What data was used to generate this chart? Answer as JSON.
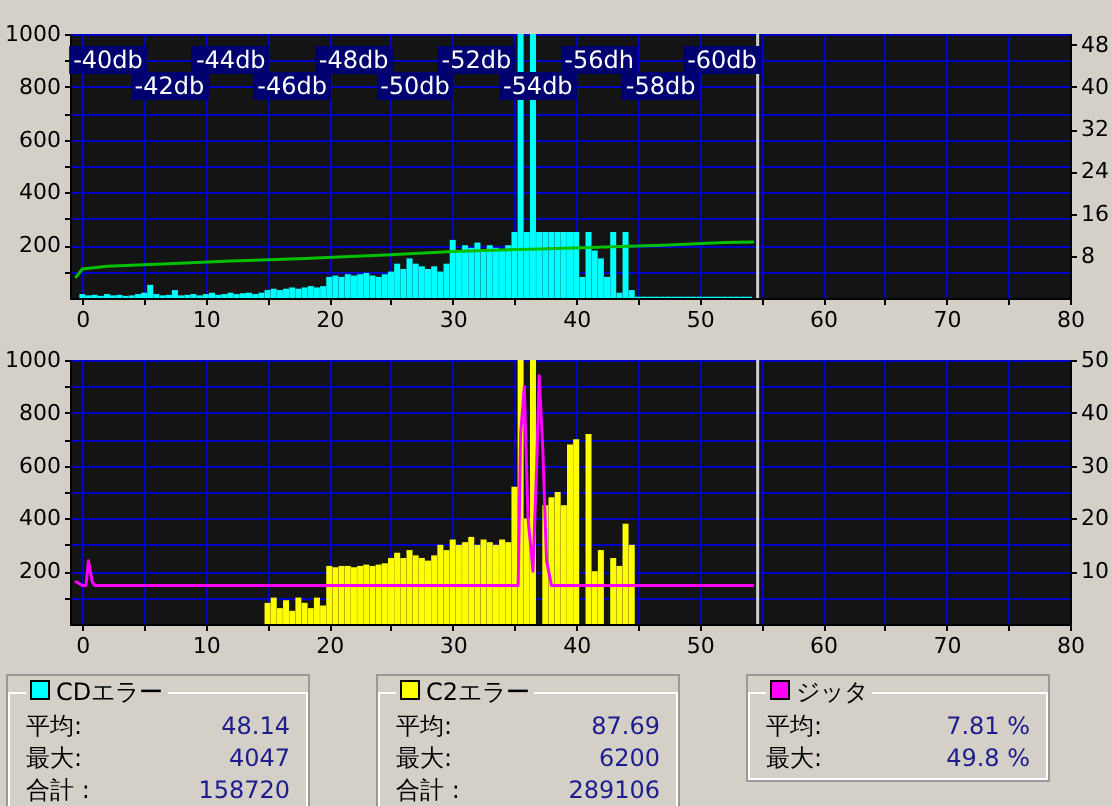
{
  "chart_data": [
    {
      "type": "bar",
      "x": [
        0,
        0.5,
        1,
        1.5,
        2,
        2.5,
        3,
        3.5,
        4,
        4.5,
        5,
        5.5,
        6,
        6.5,
        7,
        7.5,
        8,
        8.5,
        9,
        9.5,
        10,
        10.5,
        11,
        11.5,
        12,
        12.5,
        13,
        13.5,
        14,
        14.5,
        15,
        15.5,
        16,
        16.5,
        17,
        17.5,
        18,
        18.5,
        19,
        19.5,
        20,
        20.5,
        21,
        21.5,
        22,
        22.5,
        23,
        23.5,
        24,
        24.5,
        25,
        25.5,
        26,
        26.5,
        27,
        27.5,
        28,
        28.5,
        29,
        29.5,
        30,
        30.5,
        31,
        31.5,
        32,
        32.5,
        33,
        33.5,
        34,
        34.5,
        35,
        35.5,
        36,
        36.5,
        37,
        37.5,
        38,
        38.5,
        39,
        39.5,
        40,
        40.5,
        41,
        41.5,
        42,
        42.5,
        43,
        43.5,
        44,
        44.5,
        45,
        45.5,
        46,
        46.5,
        47,
        47.5,
        48,
        48.5,
        49,
        49.5,
        50,
        50.5,
        51,
        51.5,
        52,
        52.5,
        53,
        53.5,
        54
      ],
      "xlim": [
        -1,
        80
      ],
      "xticks": [
        0,
        {
          "value": 5,
          "label": null
        },
        10,
        {
          "value": 15,
          "label": null
        },
        20,
        {
          "value": 25,
          "label": null
        },
        30,
        {
          "value": 35,
          "label": null
        },
        40,
        {
          "value": 45,
          "label": null
        },
        50,
        {
          "value": 55,
          "label": null
        },
        60,
        {
          "value": 65,
          "label": null
        },
        70,
        {
          "value": 75,
          "label": null
        },
        80
      ],
      "ylim": [
        0,
        1000
      ],
      "yticks": [
        {
          "value": 100,
          "label": null
        },
        200,
        {
          "value": 300,
          "label": null
        },
        400,
        {
          "value": 500,
          "label": null
        },
        600,
        {
          "value": 700,
          "label": null
        },
        800,
        {
          "value": 900,
          "label": null
        },
        1000
      ],
      "y2lim": [
        0,
        50
      ],
      "y2ticks": [
        8,
        16,
        24,
        32,
        40,
        48
      ],
      "grid": true,
      "series": [
        {
          "color": "#00ffff",
          "values": [
            15,
            10,
            12,
            8,
            15,
            10,
            12,
            8,
            10,
            15,
            20,
            50,
            15,
            10,
            12,
            30,
            10,
            12,
            15,
            10,
            15,
            20,
            12,
            15,
            20,
            15,
            18,
            20,
            15,
            20,
            30,
            35,
            30,
            35,
            40,
            35,
            40,
            45,
            40,
            45,
            80,
            85,
            80,
            90,
            85,
            90,
            95,
            85,
            80,
            90,
            100,
            130,
            110,
            150,
            130,
            120,
            110,
            120,
            100,
            130,
            220,
            180,
            200,
            190,
            210,
            180,
            200,
            190,
            180,
            200,
            250,
            1000,
            250,
            1000,
            250,
            250,
            250,
            250,
            250,
            250,
            250,
            80,
            250,
            180,
            150,
            80,
            250,
            20,
            250,
            30,
            5,
            5,
            5,
            5,
            5,
            5,
            5,
            5,
            5,
            5,
            5,
            5,
            5,
            5,
            5,
            5,
            5,
            5,
            5
          ]
        },
        {
          "type": "line",
          "axis": "y2",
          "color": "#00c000",
          "x": [
            -0.5,
            0,
            2,
            7,
            12,
            18,
            25,
            30,
            37,
            47,
            52,
            54.3
          ],
          "values": [
            4,
            5.5,
            6,
            6.5,
            7,
            7.5,
            8.2,
            8.8,
            9.3,
            10,
            10.5,
            10.6
          ]
        }
      ],
      "ref_lines": [
        {
          "axis": "x",
          "value": 54.7,
          "color": "#d0d0d0"
        }
      ],
      "annotations": [
        "-40db",
        "-42db",
        "-44db",
        "-46db",
        "-48db",
        "-50db",
        "-52db",
        "-54db",
        "-56dh",
        "-58db",
        "-60db"
      ]
    },
    {
      "type": "bar",
      "x": [
        0,
        0.5,
        1,
        1.5,
        2,
        2.5,
        3,
        3.5,
        4,
        4.5,
        5,
        5.5,
        6,
        6.5,
        7,
        7.5,
        8,
        8.5,
        9,
        9.5,
        10,
        10.5,
        11,
        11.5,
        12,
        12.5,
        13,
        13.5,
        14,
        14.5,
        15,
        15.5,
        16,
        16.5,
        17,
        17.5,
        18,
        18.5,
        19,
        19.5,
        20,
        20.5,
        21,
        21.5,
        22,
        22.5,
        23,
        23.5,
        24,
        24.5,
        25,
        25.5,
        26,
        26.5,
        27,
        27.5,
        28,
        28.5,
        29,
        29.5,
        30,
        30.5,
        31,
        31.5,
        32,
        32.5,
        33,
        33.5,
        34,
        34.5,
        35,
        35.5,
        36,
        36.5,
        37,
        37.5,
        38,
        38.5,
        39,
        39.5,
        40,
        40.5,
        41,
        41.5,
        42,
        42.5,
        43,
        43.5,
        44,
        44.5,
        45,
        45.5,
        46,
        46.5,
        47,
        47.5,
        48,
        48.5,
        49,
        49.5,
        50,
        50.5,
        51,
        51.5,
        52,
        52.5,
        53,
        53.5,
        54,
        54.5
      ],
      "xlim": [
        -1,
        80
      ],
      "xticks": [
        0,
        {
          "value": 5,
          "label": null
        },
        10,
        {
          "value": 15,
          "label": null
        },
        20,
        {
          "value": 25,
          "label": null
        },
        30,
        {
          "value": 35,
          "label": null
        },
        40,
        {
          "value": 45,
          "label": null
        },
        50,
        {
          "value": 55,
          "label": null
        },
        60,
        {
          "value": 65,
          "label": null
        },
        70,
        {
          "value": 75,
          "label": null
        },
        80
      ],
      "ylim": [
        0,
        1000
      ],
      "yticks": [
        {
          "value": 100,
          "label": null
        },
        200,
        {
          "value": 300,
          "label": null
        },
        400,
        {
          "value": 500,
          "label": null
        },
        600,
        {
          "value": 700,
          "label": null
        },
        800,
        {
          "value": 900,
          "label": null
        },
        1000
      ],
      "y2lim": [
        0,
        50
      ],
      "y2ticks": [
        10,
        20,
        30,
        40,
        50
      ],
      "grid": true,
      "series": [
        {
          "color": "#ffff00",
          "values": [
            0,
            0,
            0,
            0,
            0,
            0,
            0,
            0,
            0,
            0,
            0,
            0,
            0,
            0,
            0,
            0,
            0,
            0,
            0,
            0,
            0,
            0,
            0,
            0,
            0,
            0,
            0,
            0,
            0,
            0,
            80,
            100,
            60,
            90,
            50,
            100,
            80,
            60,
            100,
            70,
            220,
            215,
            220,
            220,
            215,
            220,
            225,
            220,
            225,
            230,
            250,
            270,
            250,
            280,
            260,
            250,
            240,
            260,
            300,
            280,
            320,
            300,
            310,
            330,
            300,
            320,
            310,
            300,
            320,
            310,
            520,
            1000,
            400,
            1000,
            0,
            450,
            480,
            500,
            450,
            680,
            700,
            0,
            720,
            200,
            280,
            0,
            250,
            220,
            380,
            300,
            0,
            0,
            0,
            0,
            0,
            0,
            0,
            0,
            0,
            0,
            0,
            0,
            0,
            0,
            0,
            0,
            0,
            0,
            0,
            0
          ]
        },
        {
          "type": "line",
          "axis": "y2",
          "color": "#ff00ff",
          "x": [
            -0.5,
            0,
            0.3,
            0.5,
            0.8,
            1,
            35.3,
            35.5,
            35.8,
            36.1,
            36.5,
            36.8,
            37,
            37.3,
            37.6,
            38,
            54.3
          ],
          "values": [
            8,
            7.3,
            7.3,
            12,
            8,
            7.3,
            7.3,
            36,
            45,
            20,
            10,
            30,
            47,
            33,
            12,
            7.3,
            7.3
          ]
        }
      ],
      "ref_lines": [
        {
          "axis": "x",
          "value": 54.7,
          "color": "#d0d0d0"
        }
      ]
    },
    {
      "type": "other",
      "title": "CDエラー",
      "colors": [
        "#00ffff"
      ],
      "annotations": [
        "平均:",
        "48.14",
        "最大:",
        "4047",
        "合計 :",
        "158720"
      ]
    },
    {
      "type": "other",
      "title": "C2エラー",
      "colors": [
        "#ffff00"
      ],
      "annotations": [
        "平均:",
        "87.69",
        "最大:",
        "6200",
        "合計 :",
        "289106"
      ]
    },
    {
      "type": "other",
      "title": "ジッタ",
      "colors": [
        "#ff00ff"
      ],
      "annotations": [
        "平均:",
        "7.81 %",
        "最大:",
        "49.8 %"
      ]
    }
  ]
}
